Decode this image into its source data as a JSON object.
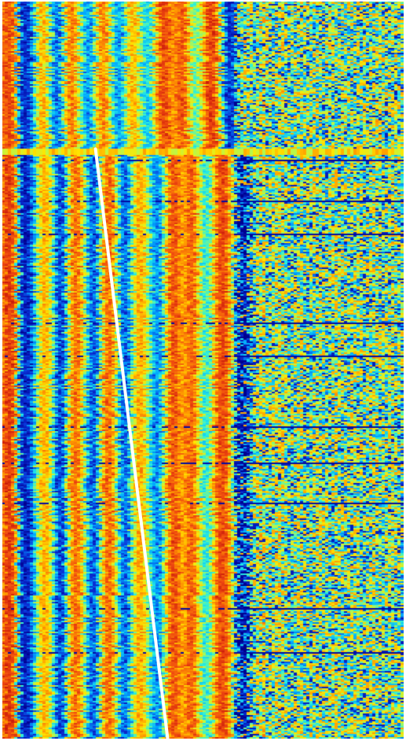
{
  "chart_data": {
    "type": "heatmap",
    "title": "",
    "xlabel": "",
    "ylabel": "",
    "colormap": "jet",
    "colormap_stops": [
      "#00008f",
      "#0a2fd6",
      "#00a8ff",
      "#29f0e0",
      "#b8f84a",
      "#ffe600",
      "#ff9a00",
      "#f04a10",
      "#c81a0a"
    ],
    "x_columns": 128,
    "y_rows": 470,
    "value_range": [
      0,
      1
    ],
    "axes_visible": false,
    "grid": false,
    "legend": "none",
    "column_profile": [
      0.78,
      0.9,
      0.93,
      0.88,
      0.72,
      0.35,
      0.12,
      0.08,
      0.1,
      0.18,
      0.3,
      0.48,
      0.63,
      0.73,
      0.7,
      0.58,
      0.4,
      0.22,
      0.12,
      0.15,
      0.33,
      0.58,
      0.76,
      0.84,
      0.8,
      0.66,
      0.48,
      0.3,
      0.18,
      0.14,
      0.26,
      0.48,
      0.7,
      0.82,
      0.85,
      0.74,
      0.55,
      0.34,
      0.2,
      0.16,
      0.25,
      0.44,
      0.6,
      0.72,
      0.74,
      0.64,
      0.5,
      0.36,
      0.26,
      0.2,
      0.26,
      0.42,
      0.62,
      0.8,
      0.88,
      0.86,
      0.78,
      0.72,
      0.74,
      0.82,
      0.86,
      0.8,
      0.66,
      0.5,
      0.38,
      0.36,
      0.46,
      0.64,
      0.8,
      0.88,
      0.9,
      0.86,
      0.74,
      0.54,
      0.3,
      0.14,
      0.08,
      0.1,
      0.18,
      0.3,
      0.42,
      0.52,
      0.55,
      0.5,
      0.44,
      0.42,
      0.46,
      0.52,
      0.55,
      0.5,
      0.42,
      0.38,
      0.4,
      0.46,
      0.5,
      0.48,
      0.42,
      0.38,
      0.4,
      0.46,
      0.5,
      0.48,
      0.44,
      0.4,
      0.42,
      0.48,
      0.5,
      0.46,
      0.42,
      0.4,
      0.44,
      0.48,
      0.5,
      0.46,
      0.42,
      0.4,
      0.44,
      0.48,
      0.5,
      0.46,
      0.42,
      0.4,
      0.44,
      0.48,
      0.5,
      0.46,
      0.42,
      0.4
    ],
    "top_block": {
      "row_end_fraction": 0.2,
      "column_profile": [
        0.8,
        0.88,
        0.9,
        0.85,
        0.7,
        0.3,
        0.12,
        0.1,
        0.12,
        0.2,
        0.35,
        0.55,
        0.7,
        0.72,
        0.6,
        0.42,
        0.25,
        0.18,
        0.22,
        0.4,
        0.62,
        0.78,
        0.82,
        0.74,
        0.58,
        0.42,
        0.3,
        0.22,
        0.26,
        0.42,
        0.62,
        0.76,
        0.8,
        0.72,
        0.55,
        0.38,
        0.26,
        0.22,
        0.3,
        0.46,
        0.62,
        0.72,
        0.7,
        0.58,
        0.44,
        0.34,
        0.3,
        0.36,
        0.52,
        0.7,
        0.84,
        0.9,
        0.88,
        0.8,
        0.74,
        0.76,
        0.84,
        0.88,
        0.82,
        0.68,
        0.52,
        0.42,
        0.44,
        0.56,
        0.72,
        0.86,
        0.92,
        0.9,
        0.8,
        0.6,
        0.35,
        0.16,
        0.1,
        0.12,
        0.22,
        0.35,
        0.45,
        0.5,
        0.48,
        0.42,
        0.38,
        0.42,
        0.5,
        0.55,
        0.5,
        0.42,
        0.36,
        0.4,
        0.48,
        0.52,
        0.46,
        0.4,
        0.38,
        0.44,
        0.5,
        0.48,
        0.42,
        0.4,
        0.44,
        0.5,
        0.48,
        0.42,
        0.4,
        0.44,
        0.5,
        0.48,
        0.42,
        0.4,
        0.44,
        0.5,
        0.48,
        0.42,
        0.4,
        0.44,
        0.5,
        0.48,
        0.42,
        0.4,
        0.44,
        0.5,
        0.48,
        0.42,
        0.4,
        0.44,
        0.5,
        0.48,
        0.42,
        0.4
      ]
    },
    "overlay_line": {
      "color": "#ffffff",
      "start": {
        "column_fraction": 0.232,
        "row_fraction": 0.2
      },
      "end": {
        "column_fraction": 0.412,
        "row_fraction": 1.0
      }
    }
  }
}
